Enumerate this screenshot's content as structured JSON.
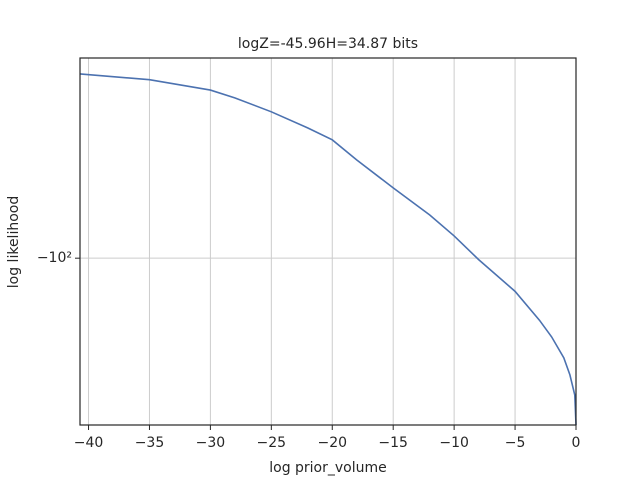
{
  "chart_data": {
    "type": "line",
    "title": "logZ=-45.96H=34.87 bits",
    "xlabel": "log prior_volume",
    "ylabel": "log likelihood",
    "yscale": "symlog",
    "grid": true,
    "x": [
      -40.7,
      -35,
      -30,
      -28,
      -25,
      -22,
      -20,
      -18,
      -15,
      -12,
      -10,
      -8,
      -5,
      -3,
      -2,
      -1,
      -0.5,
      -0.1,
      0
    ],
    "series": [
      {
        "color": "#4c72b0",
        "values": [
          -24.3,
          -25.4,
          -27.5,
          -29.2,
          -32.5,
          -36.8,
          -40.3,
          -47.0,
          -58.3,
          -71.8,
          -84.3,
          -101,
          -129,
          -161,
          -183,
          -215,
          -245,
          -286,
          -360
        ]
      }
    ],
    "xlim": [
      -40.7,
      0
    ],
    "xticks": [
      {
        "value": -40,
        "label": "−40"
      },
      {
        "value": -35,
        "label": "−35"
      },
      {
        "value": -30,
        "label": "−30"
      },
      {
        "value": -25,
        "label": "−25"
      },
      {
        "value": -20,
        "label": "−20"
      },
      {
        "value": -15,
        "label": "−15"
      },
      {
        "value": -10,
        "label": "−10"
      },
      {
        "value": -5,
        "label": "−5"
      },
      0
    ],
    "ylim": [
      -360,
      -21.5
    ],
    "yticks": [
      {
        "value": -100,
        "label": "−10²"
      }
    ]
  }
}
